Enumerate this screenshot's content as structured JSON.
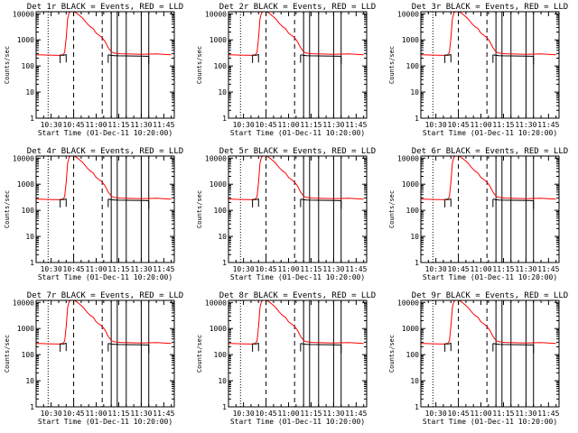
{
  "chart_data": {
    "type": "line",
    "shared": {
      "xlabel": "Start Time (01-Dec-11 10:20:00)",
      "ylabel": "Counts/sec",
      "x_ticks": [
        "10:30",
        "10:45",
        "11:00",
        "11:15",
        "11:30",
        "11:45"
      ],
      "x_tick_minutes": [
        10,
        25,
        40,
        55,
        70,
        85
      ],
      "xlim_minutes": [
        0,
        92
      ],
      "y_ticks": [
        "1",
        "10",
        "100",
        "1000",
        "10000"
      ],
      "y_tick_values": [
        1,
        10,
        100,
        1000,
        10000
      ],
      "yscale": "log",
      "ylim": [
        1,
        12000
      ],
      "legend_text": "BLACK = Events, RED = LLD",
      "colors": {
        "events": "#000000",
        "lld": "#ff0000",
        "axes": "#000000"
      },
      "lld_series": {
        "x": [
          0,
          4,
          8,
          12,
          16,
          17,
          18,
          19,
          20,
          21,
          22,
          23,
          24,
          25,
          26,
          27,
          28,
          29,
          30,
          31,
          32,
          34,
          36,
          38,
          40,
          42,
          44,
          46,
          48,
          50,
          52,
          54,
          56,
          60,
          65,
          70,
          75,
          80,
          85,
          90
        ],
        "y": [
          270,
          265,
          260,
          258,
          255,
          260,
          275,
          330,
          1200,
          6500,
          11000,
          12000,
          12000,
          12000,
          11500,
          10500,
          9500,
          8500,
          7600,
          6800,
          5800,
          4200,
          3200,
          2700,
          1800,
          1500,
          1200,
          850,
          500,
          350,
          310,
          300,
          295,
          290,
          285,
          280,
          285,
          290,
          280,
          270
        ]
      },
      "events_series": {
        "x": [
          16,
          16.5,
          17,
          18,
          19,
          19.5,
          20,
          48,
          50,
          52,
          55,
          60,
          65,
          70,
          74,
          75
        ],
        "y": [
          265,
          262,
          260,
          255,
          262,
          270,
          280,
          270,
          255,
          248,
          245,
          242,
          240,
          238,
          236,
          234
        ]
      },
      "vertical_markers": {
        "dotted_minutes": [
          8
        ],
        "dashed_minutes": [
          25,
          44
        ],
        "solid_minutes": [
          50,
          54,
          60,
          70,
          75
        ]
      }
    },
    "panels": [
      {
        "title": "Det 1r BLACK = Events, RED = LLD"
      },
      {
        "title": "Det 2r BLACK = Events, RED = LLD"
      },
      {
        "title": "Det 3r BLACK = Events, RED = LLD"
      },
      {
        "title": "Det 4r BLACK = Events, RED = LLD"
      },
      {
        "title": "Det 5r BLACK = Events, RED = LLD"
      },
      {
        "title": "Det 6r BLACK = Events, RED = LLD"
      },
      {
        "title": "Det 7r BLACK = Events, RED = LLD"
      },
      {
        "title": "Det 8r BLACK = Events, RED = LLD"
      },
      {
        "title": "Det 9r BLACK = Events, RED = LLD"
      }
    ]
  }
}
